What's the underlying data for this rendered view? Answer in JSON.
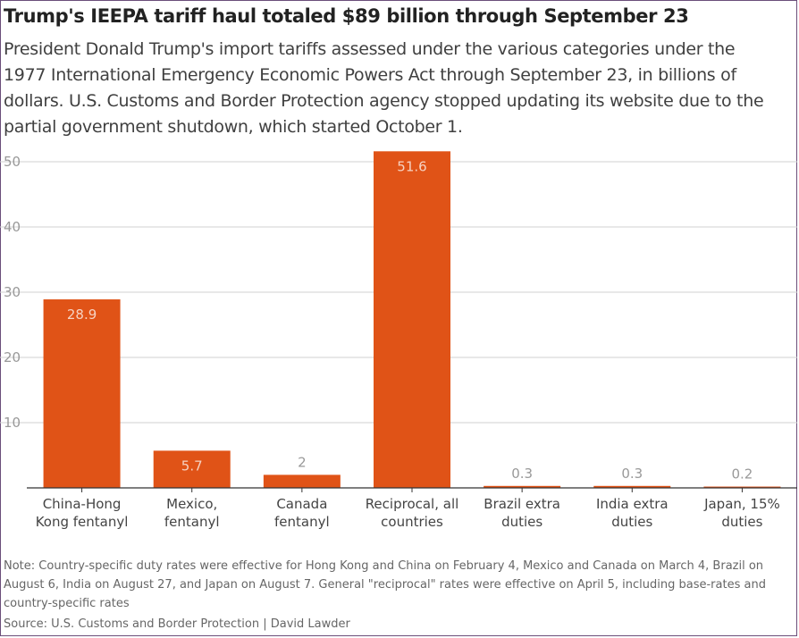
{
  "header": {
    "title": "Trump's IEEPA tariff haul totaled $89 billion through September 23",
    "subtitle": "President Donald Trump's import tariffs assessed under the various categories under the 1977 International Emergency Economic Powers Act through September 23, in billions of dollars. U.S. Customs and Border Protection agency stopped updating its website due to the partial government shutdown, which started October 1."
  },
  "footer": {
    "note": "Note: Country-specific duty rates were effective for Hong Kong and China on February 4, Mexico and Canada on March 4, Brazil on August 6, India on August 27, and Japan on August 7. General \"reciprocal\" rates were effective on April 5, including base-rates and country-specific rates",
    "source": "Source: U.S. Customs and Border Protection | David Lawder"
  },
  "colors": {
    "bar": "#e05317",
    "grid": "#d2d2d2",
    "axis": "#333333",
    "tick_text": "#999999",
    "label_inside": "#f6d2c2",
    "label_outside": "#999999"
  },
  "chart_data": {
    "type": "bar",
    "title": "Trump's IEEPA tariff haul totaled $89 billion through September 23",
    "categories": [
      [
        "China-Hong",
        "Kong fentanyl"
      ],
      [
        "Mexico,",
        "fentanyl"
      ],
      [
        "Canada",
        "fentanyl"
      ],
      [
        "Reciprocal, all",
        "countries"
      ],
      [
        "Brazil extra",
        "duties"
      ],
      [
        "India extra",
        "duties"
      ],
      [
        "Japan, 15%",
        "duties"
      ]
    ],
    "values": [
      28.9,
      5.7,
      2,
      51.6,
      0.3,
      0.3,
      0.2
    ],
    "value_labels": [
      "28.9",
      "5.7",
      "2",
      "51.6",
      "0.3",
      "0.3",
      "0.2"
    ],
    "ylim": [
      0,
      50
    ],
    "yticks": [
      10,
      20,
      30,
      40,
      50
    ],
    "ytick_labels": [
      "10",
      "20",
      "30",
      "40",
      "50"
    ],
    "xlabel": "",
    "ylabel": "",
    "grid": true
  }
}
